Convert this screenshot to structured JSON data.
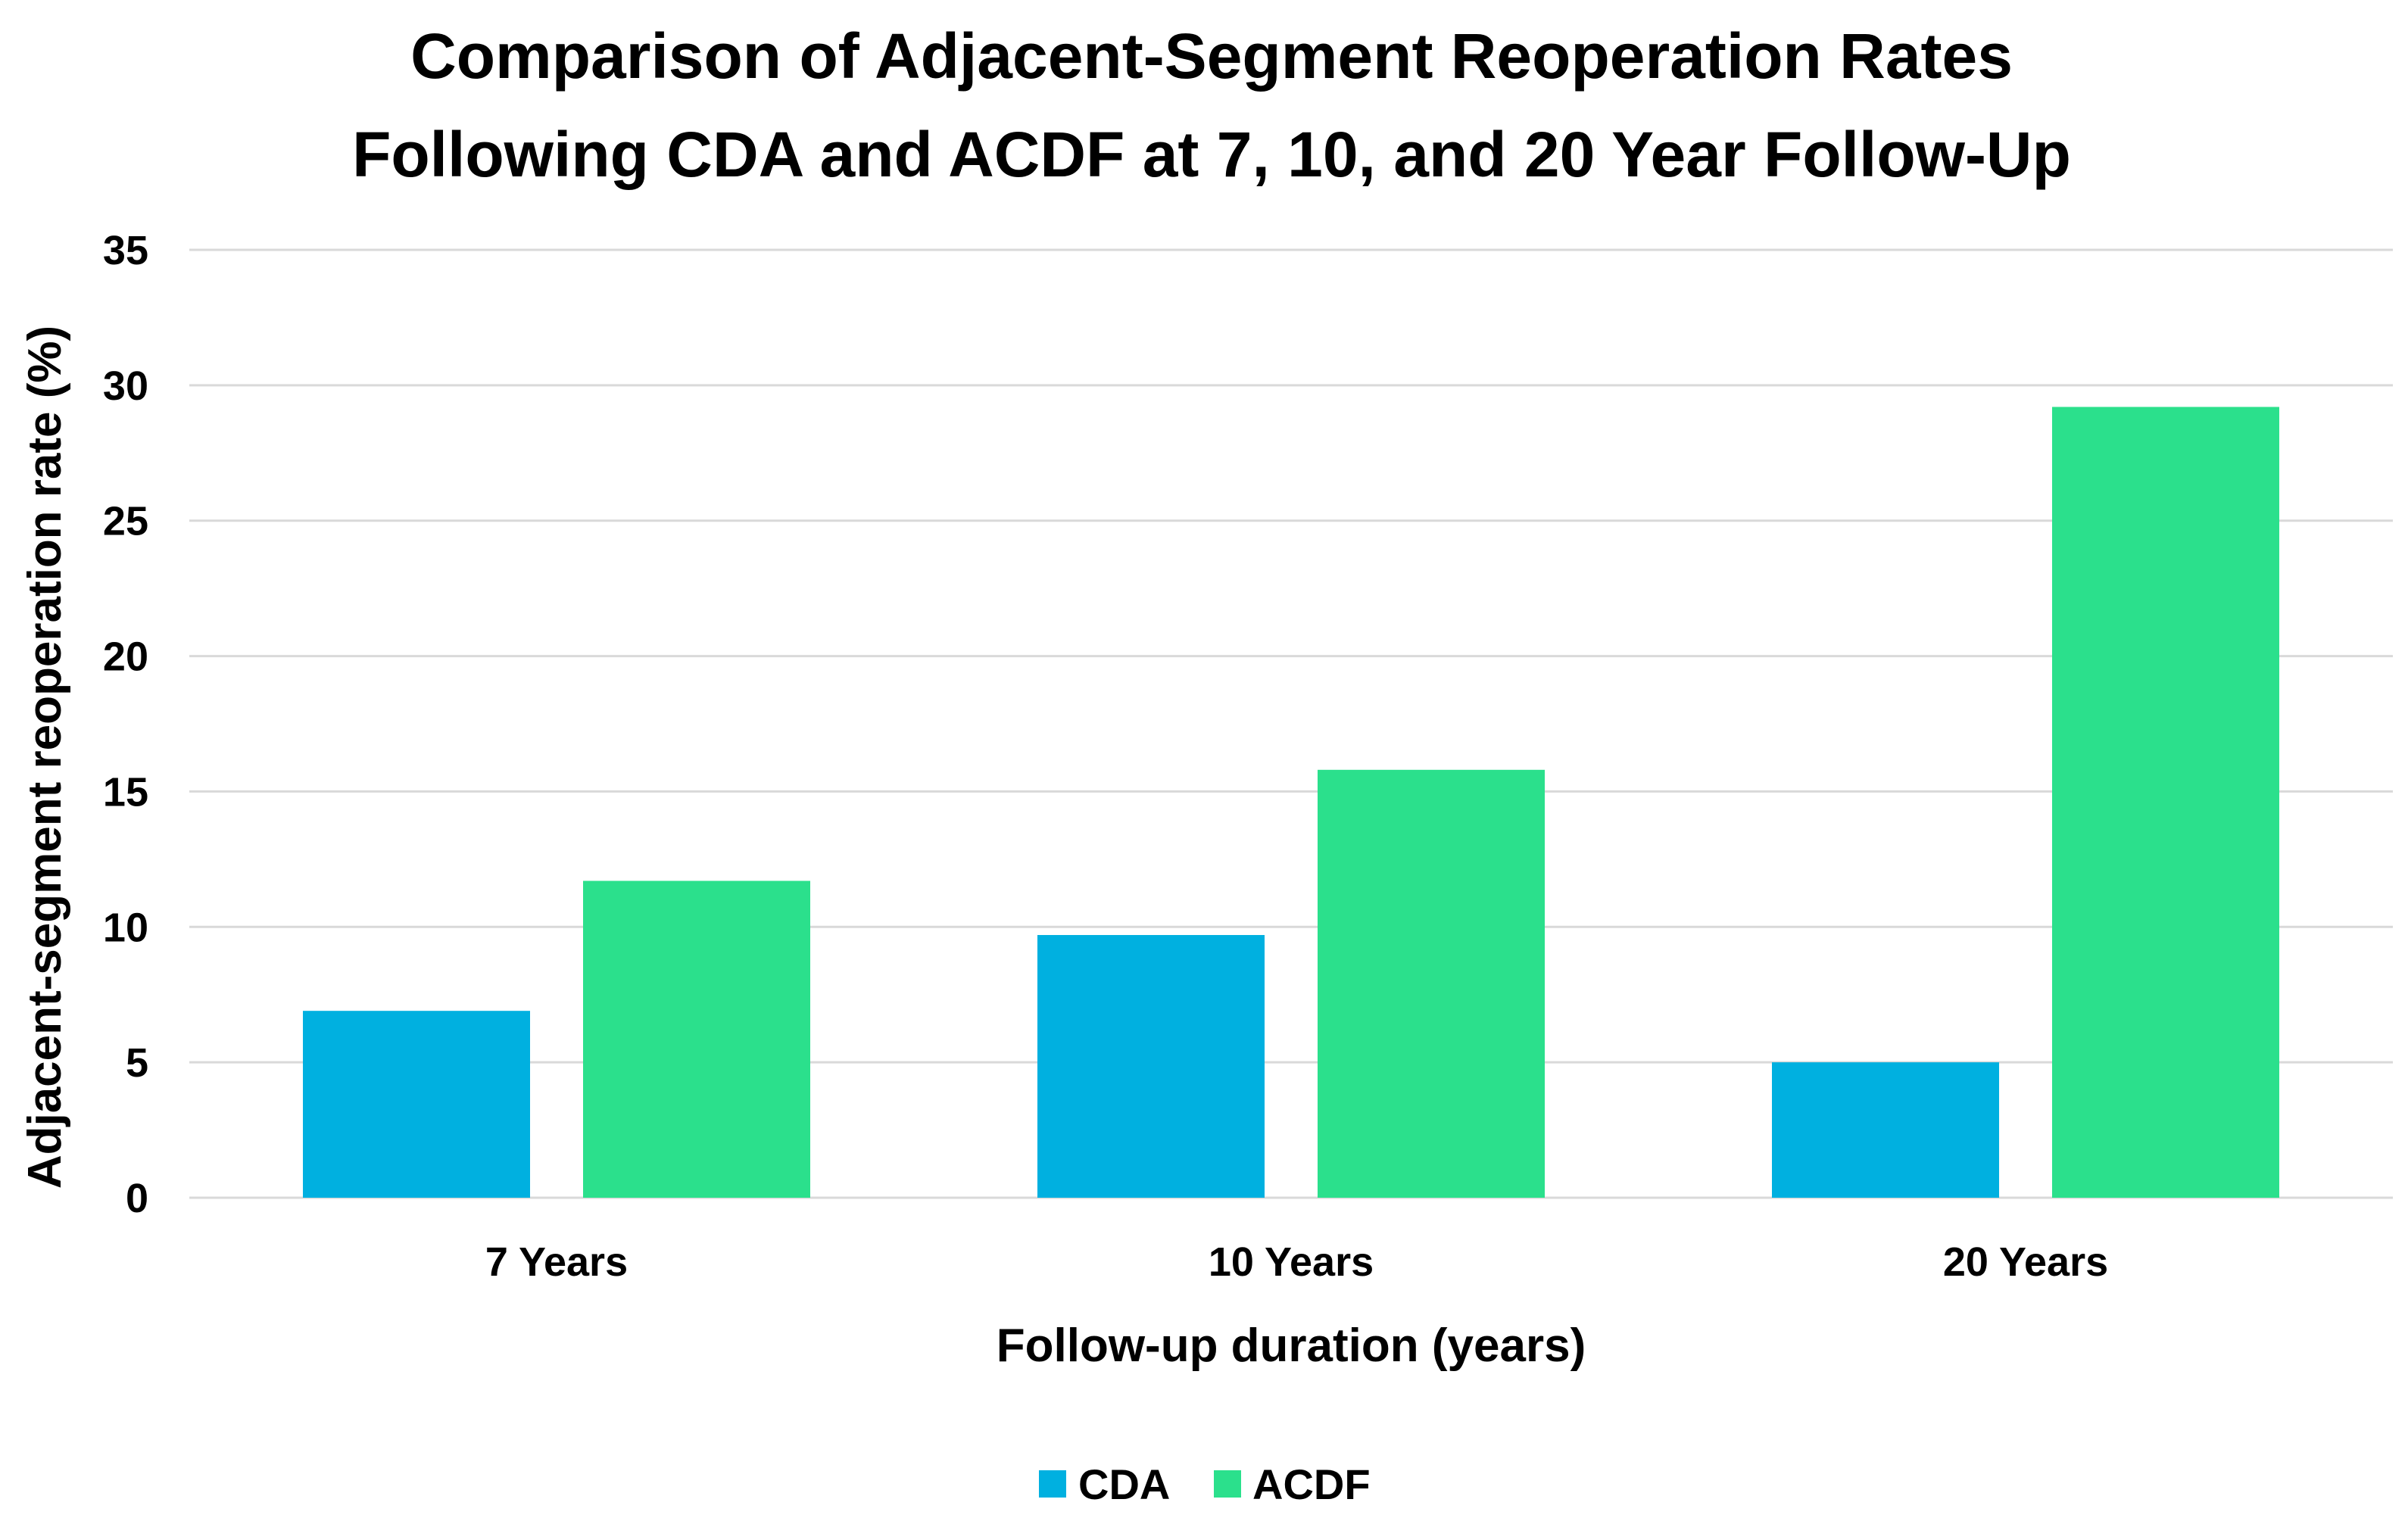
{
  "chart_data": {
    "type": "bar",
    "title_lines": [
      "Comparison of Adjacent-Segment Reoperation Rates",
      "Following CDA and ACDF at 7, 10, and 20 Year Follow-Up"
    ],
    "xlabel": "Follow-up duration (years)",
    "ylabel": "Adjacent-segment reoperation rate (%)",
    "categories": [
      "7 Years",
      "10 Years",
      "20 Years"
    ],
    "series": [
      {
        "name": "CDA",
        "color": "#00B0E0",
        "values": [
          6.9,
          9.7,
          5.0
        ]
      },
      {
        "name": "ACDF",
        "color": "#2BE08C",
        "values": [
          11.7,
          15.8,
          29.2
        ]
      }
    ],
    "ylim": [
      0,
      35
    ],
    "yticks": [
      0,
      5,
      10,
      15,
      20,
      25,
      30,
      35
    ],
    "grid": true,
    "legend_position": "bottom-center"
  }
}
